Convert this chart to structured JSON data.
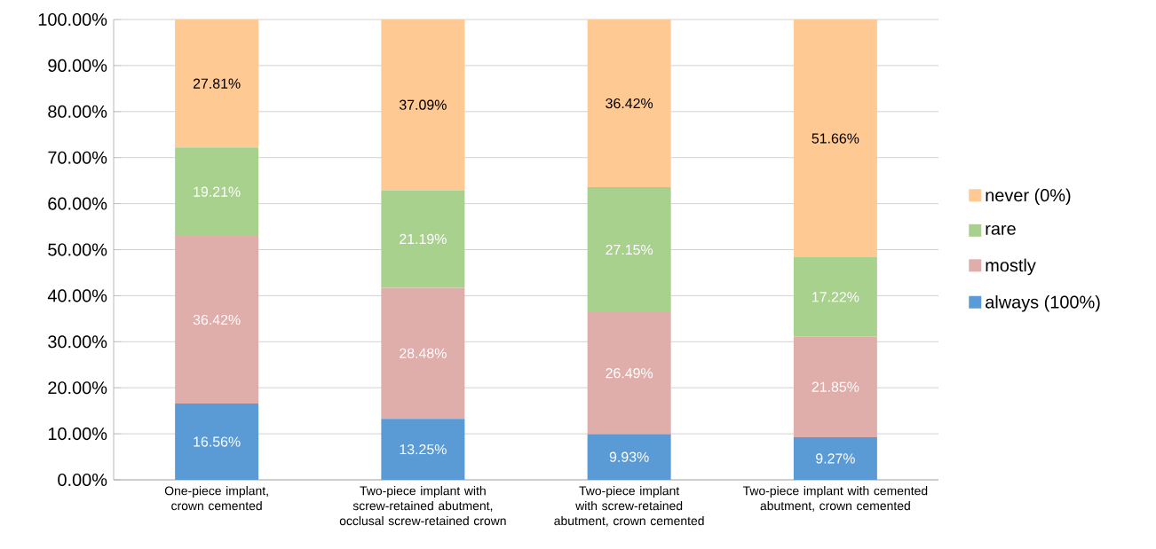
{
  "chart_data": {
    "type": "bar",
    "stacked": true,
    "categories": [
      "One-piece implant, crown cemented",
      "Two-piece implant with screw-retained abutment, occlusal screw-retained crown",
      "Two-piece implant with screw-retained abutment, crown cemented",
      "Two-piece implant with cemented abutment, crown cemented"
    ],
    "series": [
      {
        "name": "always (100%)",
        "color": "#5b9bd5",
        "values": [
          16.56,
          13.25,
          9.93,
          9.27
        ],
        "value_labels": [
          "16.56%",
          "13.25%",
          "9.93%",
          "9.27%"
        ]
      },
      {
        "name": "mostly",
        "color": "#dfaeab",
        "values": [
          36.42,
          28.48,
          26.49,
          21.85
        ],
        "value_labels": [
          "36.42%",
          "28.48%",
          "26.49%",
          "21.85%"
        ]
      },
      {
        "name": "rare",
        "color": "#a9d18e",
        "values": [
          19.21,
          21.19,
          27.15,
          17.22
        ],
        "value_labels": [
          "19.21%",
          "21.19%",
          "27.15%",
          "17.22%"
        ]
      },
      {
        "name": "never (0%)",
        "color": "#ffc993",
        "values": [
          27.81,
          37.09,
          36.42,
          51.66
        ],
        "value_labels": [
          "27.81%",
          "37.09%",
          "36.42%",
          "51.66%"
        ]
      }
    ],
    "ylim": [
      0,
      100
    ],
    "yticks": [
      {
        "value": 0,
        "label": "0.00%"
      },
      {
        "value": 10,
        "label": "10.00%"
      },
      {
        "value": 20,
        "label": "20.00%"
      },
      {
        "value": 30,
        "label": "30.00%"
      },
      {
        "value": 40,
        "label": "40.00%"
      },
      {
        "value": 50,
        "label": "50.00%"
      },
      {
        "value": 60,
        "label": "60.00%"
      },
      {
        "value": 70,
        "label": "70.00%"
      },
      {
        "value": 80,
        "label": "80.00%"
      },
      {
        "value": 90,
        "label": "90.00%"
      },
      {
        "value": 100,
        "label": "100.00%"
      }
    ],
    "grid": "y",
    "legend": "right"
  }
}
